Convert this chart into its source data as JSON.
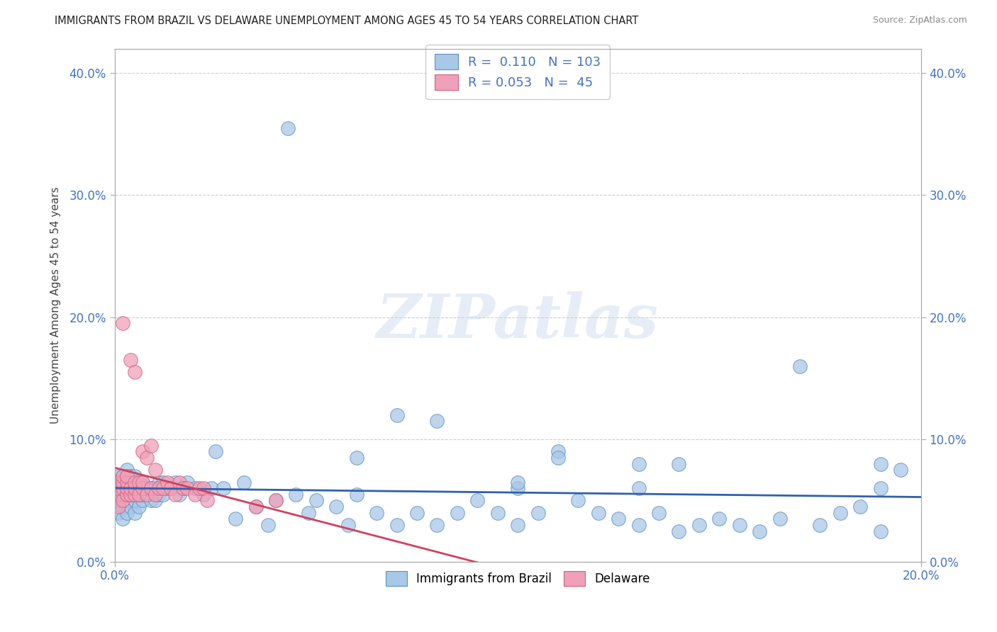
{
  "title": "IMMIGRANTS FROM BRAZIL VS DELAWARE UNEMPLOYMENT AMONG AGES 45 TO 54 YEARS CORRELATION CHART",
  "source": "Source: ZipAtlas.com",
  "ylabel": "Unemployment Among Ages 45 to 54 years",
  "xlim": [
    0.0,
    0.2
  ],
  "ylim": [
    0.0,
    0.42
  ],
  "xticks": [
    0.0,
    0.2
  ],
  "yticks": [
    0.0,
    0.1,
    0.2,
    0.3,
    0.4
  ],
  "xtick_labels": [
    "0.0%",
    "20.0%"
  ],
  "ytick_labels": [
    "0.0%",
    "10.0%",
    "20.0%",
    "30.0%",
    "40.0%"
  ],
  "blue_color": "#a8c8e8",
  "pink_color": "#f0a0b8",
  "blue_edge_color": "#6090c0",
  "pink_edge_color": "#d06080",
  "blue_line_color": "#3060b0",
  "pink_line_color": "#d04060",
  "background_color": "#ffffff",
  "watermark": "ZIPatlas",
  "legend_R1": "0.110",
  "legend_N1": "103",
  "legend_R2": "0.053",
  "legend_N2": "45",
  "legend_label1": "Immigrants from Brazil",
  "legend_label2": "Delaware",
  "blue_x": [
    0.001,
    0.001,
    0.001,
    0.001,
    0.001,
    0.002,
    0.002,
    0.002,
    0.002,
    0.002,
    0.002,
    0.003,
    0.003,
    0.003,
    0.003,
    0.003,
    0.003,
    0.004,
    0.004,
    0.004,
    0.004,
    0.005,
    0.005,
    0.005,
    0.005,
    0.005,
    0.006,
    0.006,
    0.006,
    0.007,
    0.007,
    0.007,
    0.008,
    0.008,
    0.009,
    0.009,
    0.01,
    0.01,
    0.011,
    0.011,
    0.012,
    0.012,
    0.013,
    0.014,
    0.015,
    0.016,
    0.017,
    0.018,
    0.02,
    0.022,
    0.024,
    0.025,
    0.027,
    0.03,
    0.032,
    0.035,
    0.038,
    0.04,
    0.043,
    0.045,
    0.048,
    0.05,
    0.055,
    0.058,
    0.06,
    0.065,
    0.07,
    0.075,
    0.08,
    0.085,
    0.09,
    0.095,
    0.1,
    0.1,
    0.105,
    0.11,
    0.115,
    0.12,
    0.125,
    0.13,
    0.13,
    0.135,
    0.14,
    0.145,
    0.15,
    0.155,
    0.16,
    0.165,
    0.17,
    0.175,
    0.18,
    0.185,
    0.19,
    0.19,
    0.195,
    0.06,
    0.07,
    0.08,
    0.1,
    0.11,
    0.13,
    0.14,
    0.19
  ],
  "blue_y": [
    0.04,
    0.05,
    0.06,
    0.065,
    0.07,
    0.035,
    0.045,
    0.055,
    0.06,
    0.065,
    0.07,
    0.04,
    0.05,
    0.055,
    0.06,
    0.065,
    0.075,
    0.045,
    0.055,
    0.06,
    0.07,
    0.04,
    0.05,
    0.055,
    0.06,
    0.07,
    0.045,
    0.055,
    0.065,
    0.05,
    0.055,
    0.065,
    0.055,
    0.06,
    0.05,
    0.06,
    0.05,
    0.06,
    0.055,
    0.065,
    0.055,
    0.065,
    0.06,
    0.06,
    0.065,
    0.055,
    0.06,
    0.065,
    0.06,
    0.055,
    0.06,
    0.09,
    0.06,
    0.035,
    0.065,
    0.045,
    0.03,
    0.05,
    0.355,
    0.055,
    0.04,
    0.05,
    0.045,
    0.03,
    0.055,
    0.04,
    0.03,
    0.04,
    0.03,
    0.04,
    0.05,
    0.04,
    0.03,
    0.06,
    0.04,
    0.09,
    0.05,
    0.04,
    0.035,
    0.03,
    0.06,
    0.04,
    0.025,
    0.03,
    0.035,
    0.03,
    0.025,
    0.035,
    0.16,
    0.03,
    0.04,
    0.045,
    0.025,
    0.06,
    0.075,
    0.085,
    0.12,
    0.115,
    0.065,
    0.085,
    0.08,
    0.08,
    0.08
  ],
  "pink_x": [
    0.001,
    0.001,
    0.001,
    0.001,
    0.002,
    0.002,
    0.002,
    0.002,
    0.002,
    0.003,
    0.003,
    0.003,
    0.003,
    0.004,
    0.004,
    0.004,
    0.005,
    0.005,
    0.005,
    0.005,
    0.006,
    0.006,
    0.007,
    0.007,
    0.007,
    0.008,
    0.008,
    0.009,
    0.009,
    0.01,
    0.01,
    0.011,
    0.012,
    0.013,
    0.014,
    0.015,
    0.016,
    0.017,
    0.018,
    0.02,
    0.021,
    0.022,
    0.023,
    0.035,
    0.04
  ],
  "pink_y": [
    0.045,
    0.055,
    0.06,
    0.065,
    0.05,
    0.06,
    0.065,
    0.07,
    0.195,
    0.055,
    0.06,
    0.065,
    0.07,
    0.055,
    0.06,
    0.165,
    0.055,
    0.06,
    0.065,
    0.155,
    0.055,
    0.065,
    0.06,
    0.065,
    0.09,
    0.055,
    0.085,
    0.06,
    0.095,
    0.055,
    0.075,
    0.06,
    0.06,
    0.065,
    0.06,
    0.055,
    0.065,
    0.06,
    0.06,
    0.055,
    0.06,
    0.06,
    0.05,
    0.045,
    0.05
  ]
}
